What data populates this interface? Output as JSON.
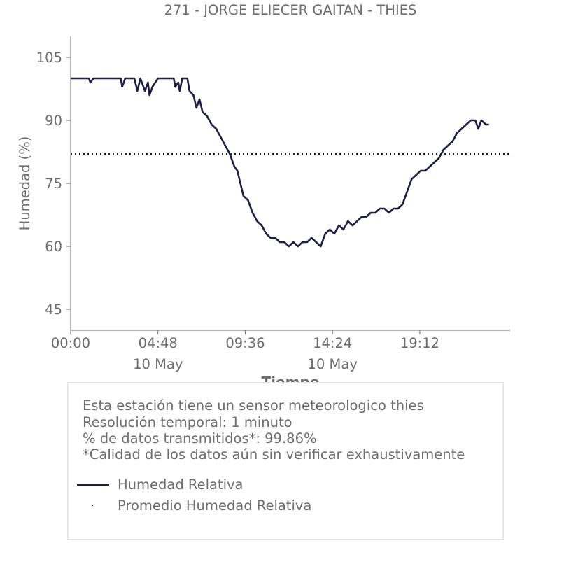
{
  "chart_data": {
    "type": "line",
    "title": "271 - JORGE ELIECER GAITAN - THIES",
    "xlabel": "Tiempo",
    "ylabel": "Humedad (%)",
    "ylim": [
      40,
      110
    ],
    "yticks": [
      45,
      60,
      75,
      90,
      105
    ],
    "xlim": [
      "2024-05-10 00:00",
      "2024-05-11 00:10"
    ],
    "xticks": [
      {
        "time": "00:00",
        "label": "00:00",
        "date": ""
      },
      {
        "time": "04:48",
        "label": "04:48",
        "date": "10 May"
      },
      {
        "time": "09:36",
        "label": "09:36",
        "date": ""
      },
      {
        "time": "14:24",
        "label": "14:24",
        "date": "10 May"
      },
      {
        "time": "19:12",
        "label": "19:12",
        "date": ""
      }
    ],
    "grid": false,
    "series": [
      {
        "name": "Humedad Relativa",
        "color": "#1e1f45",
        "style": "solid",
        "points": [
          [
            "00:00",
            100
          ],
          [
            "01:00",
            100
          ],
          [
            "01:05",
            99
          ],
          [
            "01:15",
            100
          ],
          [
            "02:00",
            100
          ],
          [
            "02:45",
            100
          ],
          [
            "02:50",
            98
          ],
          [
            "03:00",
            100
          ],
          [
            "03:30",
            100
          ],
          [
            "03:40",
            97
          ],
          [
            "03:50",
            100
          ],
          [
            "04:05",
            97
          ],
          [
            "04:15",
            99
          ],
          [
            "04:20",
            96
          ],
          [
            "04:30",
            98
          ],
          [
            "04:48",
            100
          ],
          [
            "05:40",
            100
          ],
          [
            "05:45",
            98
          ],
          [
            "05:55",
            99
          ],
          [
            "06:00",
            97
          ],
          [
            "06:08",
            100
          ],
          [
            "06:25",
            100
          ],
          [
            "06:32",
            97
          ],
          [
            "06:45",
            96
          ],
          [
            "06:55",
            93
          ],
          [
            "07:05",
            95
          ],
          [
            "07:15",
            92
          ],
          [
            "07:30",
            91
          ],
          [
            "07:45",
            89
          ],
          [
            "08:00",
            88
          ],
          [
            "08:15",
            86
          ],
          [
            "08:30",
            84
          ],
          [
            "08:45",
            82
          ],
          [
            "09:00",
            79
          ],
          [
            "09:10",
            78
          ],
          [
            "09:20",
            75
          ],
          [
            "09:30",
            72
          ],
          [
            "09:45",
            71
          ],
          [
            "10:00",
            68
          ],
          [
            "10:15",
            66
          ],
          [
            "10:30",
            65
          ],
          [
            "10:45",
            63
          ],
          [
            "11:00",
            62
          ],
          [
            "11:15",
            62
          ],
          [
            "11:30",
            61
          ],
          [
            "11:45",
            61
          ],
          [
            "12:00",
            60
          ],
          [
            "12:15",
            61
          ],
          [
            "12:30",
            60
          ],
          [
            "12:45",
            61
          ],
          [
            "13:00",
            61
          ],
          [
            "13:15",
            62
          ],
          [
            "13:30",
            61
          ],
          [
            "13:45",
            60
          ],
          [
            "14:00",
            63
          ],
          [
            "14:15",
            64
          ],
          [
            "14:30",
            63
          ],
          [
            "14:45",
            65
          ],
          [
            "15:00",
            64
          ],
          [
            "15:15",
            66
          ],
          [
            "15:30",
            65
          ],
          [
            "15:45",
            66
          ],
          [
            "16:00",
            67
          ],
          [
            "16:15",
            67
          ],
          [
            "16:30",
            68
          ],
          [
            "16:45",
            68
          ],
          [
            "17:00",
            69
          ],
          [
            "17:15",
            69
          ],
          [
            "17:30",
            68
          ],
          [
            "17:45",
            69
          ],
          [
            "18:00",
            69
          ],
          [
            "18:15",
            70
          ],
          [
            "18:30",
            73
          ],
          [
            "18:45",
            76
          ],
          [
            "19:00",
            77
          ],
          [
            "19:15",
            78
          ],
          [
            "19:30",
            78
          ],
          [
            "19:45",
            79
          ],
          [
            "20:00",
            80
          ],
          [
            "20:15",
            81
          ],
          [
            "20:30",
            83
          ],
          [
            "20:45",
            84
          ],
          [
            "21:00",
            85
          ],
          [
            "21:15",
            87
          ],
          [
            "21:30",
            88
          ],
          [
            "21:45",
            89
          ],
          [
            "22:00",
            90
          ],
          [
            "22:15",
            90
          ],
          [
            "22:25",
            88
          ],
          [
            "22:35",
            90
          ],
          [
            "22:50",
            89
          ],
          [
            "23:00",
            89
          ]
        ]
      },
      {
        "name": "Promedio Humedad Relativa",
        "color": "#1e1f45",
        "style": "dotted",
        "value": 82
      }
    ]
  },
  "info": {
    "line1": "Esta estación tiene un sensor meteorologico thies",
    "line2": "Resolución temporal: 1 minuto",
    "line3": "% de datos transmitidos*: 99.86%",
    "line4": "*Calidad de los datos aún sin verificar exhaustivamente"
  },
  "legend": [
    {
      "label": "Humedad Relativa",
      "style": "line"
    },
    {
      "label": "Promedio Humedad Relativa",
      "style": "dot"
    }
  ]
}
